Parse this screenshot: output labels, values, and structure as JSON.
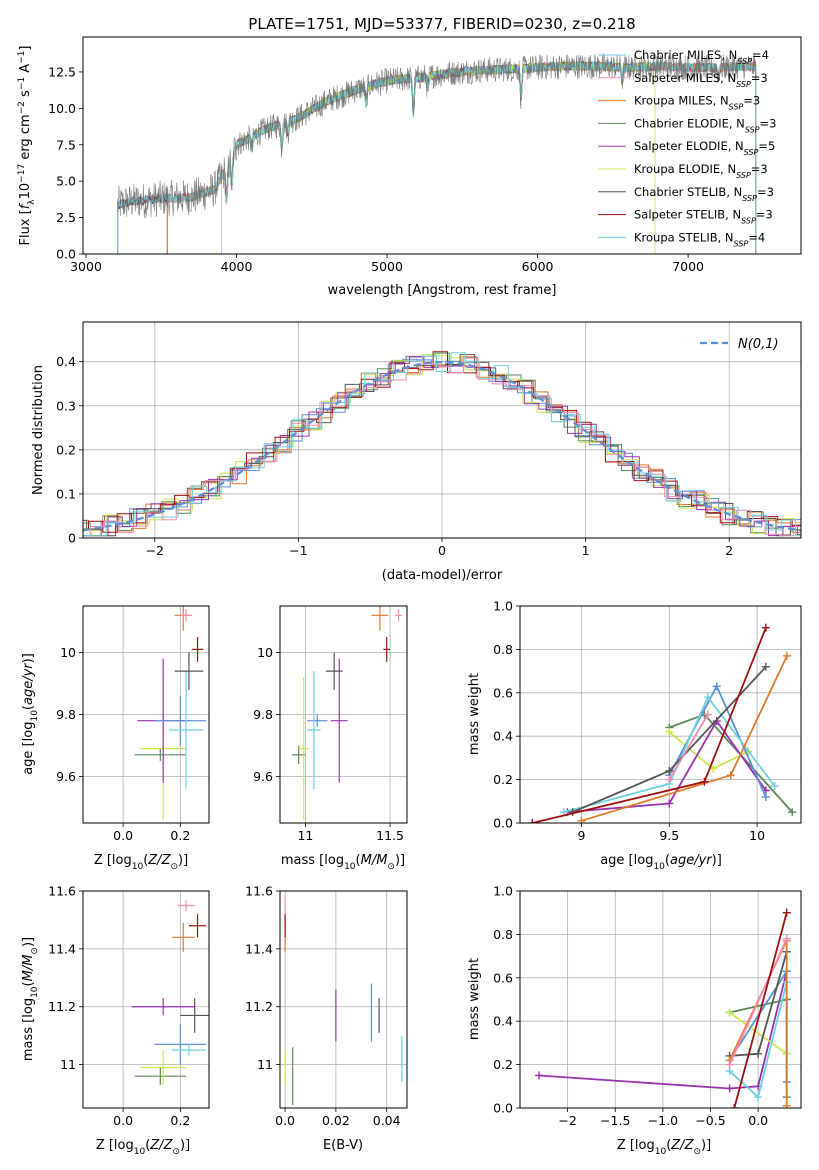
{
  "figure": {
    "title": "PLATE=1751, MJD=53377, FIBERID=0230, z=0.218"
  },
  "colors": {
    "chabrier_miles": "#7dc7e8",
    "salpeter_miles": "#f08cb0",
    "kroupa_miles": "#e07a2a",
    "chabrier_elodie": "#5a8a5a",
    "salpeter_elodie": "#9a30b0",
    "kroupa_elodie": "#c8e850",
    "chabrier_stelib": "#555555",
    "salpeter_stelib": "#a01010",
    "kroupa_stelib": "#6fd0e0",
    "normal_curve": "#5b8fd6",
    "grid": "#b0b0b0"
  },
  "chart_data": [
    {
      "id": "spectrum",
      "type": "line",
      "xlabel": "wavelength [Angstrom, rest frame]",
      "ylabel": "Flux [f_λ 10^-17 erg cm^-2 s^-1 A^-1]",
      "xlim": [
        2980,
        7750
      ],
      "ylim": [
        0,
        14.9
      ],
      "xticks": [
        3000,
        4000,
        5000,
        6000,
        7000
      ],
      "yticks": [
        0.0,
        2.5,
        5.0,
        7.5,
        10.0,
        12.5
      ],
      "grid": false,
      "legend_position": "right",
      "series": [
        {
          "name": "Chabrier MILES, N_SSP=4",
          "label_main": "Chabrier MILES, N",
          "label_sub": "SSP",
          "label_tail": "=4",
          "color_key": "chabrier_miles",
          "start": 3540,
          "end": 7450
        },
        {
          "name": "Salpeter MILES, N_SSP=3",
          "label_main": "Salpeter MILES, N",
          "label_sub": "SSP",
          "label_tail": "=3",
          "color_key": "salpeter_miles",
          "start": 3540,
          "end": 7450
        },
        {
          "name": "Kroupa MILES, N_SSP=3",
          "label_main": "Kroupa MILES, N",
          "label_sub": "SSP",
          "label_tail": "=3",
          "color_key": "kroupa_miles",
          "start": 3540,
          "end": 7450
        },
        {
          "name": "Chabrier ELODIE, N_SSP=3",
          "label_main": "Chabrier ELODIE, N",
          "label_sub": "SSP",
          "label_tail": "=3",
          "color_key": "chabrier_elodie",
          "start": 3900,
          "end": 6780
        },
        {
          "name": "Salpeter ELODIE, N_SSP=5",
          "label_main": "Salpeter ELODIE, N",
          "label_sub": "SSP",
          "label_tail": "=5",
          "color_key": "salpeter_elodie",
          "start": 3900,
          "end": 6780
        },
        {
          "name": "Kroupa ELODIE, N_SSP=3",
          "label_main": "Kroupa ELODIE, N",
          "label_sub": "SSP",
          "label_tail": "=3",
          "color_key": "kroupa_elodie",
          "start": 3900,
          "end": 6780
        },
        {
          "name": "Chabrier STELIB, N_SSP=3",
          "label_main": "Chabrier STELIB, N",
          "label_sub": "SSP",
          "label_tail": "=3",
          "color_key": "chabrier_stelib",
          "start": 3210,
          "end": 7450
        },
        {
          "name": "Salpeter STELIB, N_SSP=3",
          "label_main": "Salpeter STELIB, N",
          "label_sub": "SSP",
          "label_tail": "=3",
          "color_key": "salpeter_stelib",
          "start": 3210,
          "end": 7450
        },
        {
          "name": "Kroupa STELIB, N_SSP=4",
          "label_main": "Kroupa STELIB, N",
          "label_sub": "SSP",
          "label_tail": "=4",
          "color_key": "kroupa_stelib",
          "start": 3210,
          "end": 7450
        }
      ],
      "continuum_knots": [
        [
          3210,
          3.4
        ],
        [
          3300,
          3.6
        ],
        [
          3500,
          3.8
        ],
        [
          3700,
          3.9
        ],
        [
          3850,
          4.4
        ],
        [
          3950,
          6.2
        ],
        [
          4000,
          7.5
        ],
        [
          4200,
          8.6
        ],
        [
          4400,
          9.3
        ],
        [
          4600,
          10.5
        ],
        [
          4800,
          11.3
        ],
        [
          5000,
          11.9
        ],
        [
          5200,
          12.1
        ],
        [
          5400,
          12.4
        ],
        [
          5600,
          12.6
        ],
        [
          5800,
          12.7
        ],
        [
          6000,
          12.8
        ],
        [
          6200,
          12.9
        ],
        [
          6400,
          12.9
        ],
        [
          6600,
          12.8
        ],
        [
          6800,
          12.9
        ],
        [
          7000,
          12.8
        ],
        [
          7200,
          12.8
        ],
        [
          7450,
          12.9
        ]
      ],
      "absorption_features": [
        [
          3934,
          2.2
        ],
        [
          3969,
          2.0
        ],
        [
          4102,
          0.9
        ],
        [
          4300,
          1.6
        ],
        [
          4340,
          0.8
        ],
        [
          4861,
          1.2
        ],
        [
          5175,
          2.4
        ],
        [
          5270,
          0.8
        ],
        [
          5890,
          2.0
        ],
        [
          6563,
          0.9
        ],
        [
          7200,
          0.6
        ]
      ]
    },
    {
      "id": "residuals",
      "type": "line",
      "xlabel": "(data-model)/error",
      "ylabel": "Normed distribution",
      "xlim": [
        -2.5,
        2.5
      ],
      "ylim": [
        0,
        0.49
      ],
      "xticks": [
        -2,
        -1,
        0,
        1,
        2
      ],
      "yticks": [
        0.0,
        0.1,
        0.2,
        0.3,
        0.4
      ],
      "grid": true,
      "legend_position": "top-right",
      "legend_label": "N(0,1)",
      "bin_width": 0.1
    },
    {
      "id": "age_vs_Z",
      "type": "scatter",
      "xlabel": "Z [log10(Z/Z_sun)]",
      "ylabel": "age [log10(age/yr)]",
      "xlim": [
        -0.14,
        0.3
      ],
      "ylim": [
        9.45,
        10.15
      ],
      "xticks": [
        0.0,
        0.2
      ],
      "yticks": [
        9.6,
        9.8,
        10.0
      ],
      "grid": true,
      "points": [
        {
          "color_key": "chabrier_elodie",
          "x": 0.13,
          "y": 9.67,
          "xerr": 0.09,
          "yerr": 0.02
        },
        {
          "color_key": "kroupa_elodie",
          "x": 0.14,
          "y": 9.69,
          "xerr": 0.08,
          "yerr": 0.23
        },
        {
          "color_key": "salpeter_elodie",
          "x": 0.14,
          "y": 9.78,
          "xerr": 0.09,
          "yerr": 0.2
        },
        {
          "color_key": "normal_curve",
          "x": 0.2,
          "y": 9.78,
          "xerr": 0.09,
          "yerr": 0.08
        },
        {
          "color_key": "kroupa_stelib",
          "x": 0.22,
          "y": 9.75,
          "xerr": 0.06,
          "yerr": 0.19
        },
        {
          "color_key": "chabrier_stelib",
          "x": 0.23,
          "y": 9.94,
          "xerr": 0.05,
          "yerr": 0.06
        },
        {
          "color_key": "kroupa_miles",
          "x": 0.21,
          "y": 10.12,
          "xerr": 0.03,
          "yerr": 0.05
        },
        {
          "color_key": "salpeter_miles",
          "x": 0.22,
          "y": 10.12,
          "xerr": 0.02,
          "yerr": 0.02
        },
        {
          "color_key": "salpeter_stelib",
          "x": 0.26,
          "y": 10.01,
          "xerr": 0.02,
          "yerr": 0.04
        }
      ]
    },
    {
      "id": "age_vs_mass",
      "type": "scatter",
      "xlabel": "mass [log10(M/M_sun)]",
      "ylabel": "",
      "xlim": [
        10.85,
        11.6
      ],
      "ylim": [
        9.45,
        10.15
      ],
      "xticks": [
        11.0,
        11.5
      ],
      "yticks": [
        9.6,
        9.8,
        10.0
      ],
      "grid": true,
      "points": [
        {
          "color_key": "chabrier_elodie",
          "x": 10.96,
          "y": 9.67,
          "xerr": 0.04,
          "yerr": 0.03
        },
        {
          "color_key": "kroupa_elodie",
          "x": 10.99,
          "y": 9.69,
          "xerr": 0.03,
          "yerr": 0.23
        },
        {
          "color_key": "salpeter_elodie",
          "x": 11.2,
          "y": 9.78,
          "xerr": 0.05,
          "yerr": 0.2
        },
        {
          "color_key": "normal_curve",
          "x": 11.07,
          "y": 9.78,
          "xerr": 0.06,
          "yerr": 0.02
        },
        {
          "color_key": "kroupa_stelib",
          "x": 11.05,
          "y": 9.75,
          "xerr": 0.04,
          "yerr": 0.19
        },
        {
          "color_key": "chabrier_stelib",
          "x": 11.17,
          "y": 9.94,
          "xerr": 0.05,
          "yerr": 0.06
        },
        {
          "color_key": "kroupa_miles",
          "x": 11.44,
          "y": 10.12,
          "xerr": 0.05,
          "yerr": 0.05
        },
        {
          "color_key": "salpeter_miles",
          "x": 11.55,
          "y": 10.12,
          "xerr": 0.02,
          "yerr": 0.02
        },
        {
          "color_key": "salpeter_stelib",
          "x": 11.48,
          "y": 10.01,
          "xerr": 0.02,
          "yerr": 0.04
        }
      ]
    },
    {
      "id": "mass_weight_vs_age",
      "type": "line",
      "xlabel": "age [log10(age/yr)]",
      "ylabel": "mass weight",
      "xlim": [
        8.65,
        10.25
      ],
      "ylim": [
        0,
        1
      ],
      "xticks": [
        9.0,
        9.5,
        10.0
      ],
      "yticks": [
        0.0,
        0.2,
        0.4,
        0.6,
        0.8,
        1.0
      ],
      "grid": true,
      "series": [
        {
          "color_key": "chabrier_elodie",
          "points": [
            [
              9.5,
              0.44
            ],
            [
              9.7,
              0.5
            ],
            [
              10.2,
              0.05
            ]
          ]
        },
        {
          "color_key": "kroupa_elodie",
          "points": [
            [
              9.5,
              0.42
            ],
            [
              9.75,
              0.25
            ],
            [
              9.95,
              0.33
            ]
          ]
        },
        {
          "color_key": "salpeter_elodie",
          "points": [
            [
              8.92,
              0.05
            ],
            [
              9.5,
              0.09
            ],
            [
              9.77,
              0.47
            ],
            [
              10.05,
              0.15
            ]
          ]
        },
        {
          "color_key": "normal_curve",
          "points": [
            [
              9.5,
              0.22
            ],
            [
              9.77,
              0.63
            ],
            [
              10.05,
              0.12
            ]
          ]
        },
        {
          "color_key": "kroupa_stelib",
          "points": [
            [
              8.9,
              0.05
            ],
            [
              9.5,
              0.18
            ],
            [
              9.72,
              0.58
            ],
            [
              10.1,
              0.17
            ]
          ]
        },
        {
          "color_key": "chabrier_stelib",
          "points": [
            [
              8.95,
              0.05
            ],
            [
              9.5,
              0.24
            ],
            [
              10.05,
              0.72
            ]
          ]
        },
        {
          "color_key": "kroupa_miles",
          "points": [
            [
              9.0,
              0.01
            ],
            [
              9.85,
              0.22
            ],
            [
              10.17,
              0.77
            ]
          ]
        },
        {
          "color_key": "salpeter_miles",
          "points": [
            [
              9.5,
              0.2
            ],
            [
              9.72,
              0.5
            ]
          ]
        },
        {
          "color_key": "salpeter_stelib",
          "points": [
            [
              8.72,
              0.0
            ],
            [
              9.7,
              0.19
            ],
            [
              10.05,
              0.9
            ]
          ]
        }
      ]
    },
    {
      "id": "mass_vs_Z",
      "type": "scatter",
      "xlabel": "Z [log10(Z/Z_sun)]",
      "ylabel": "mass [log10(M/M_sun)]",
      "xlim": [
        -0.14,
        0.3
      ],
      "ylim": [
        10.85,
        11.6
      ],
      "xticks": [
        0.0,
        0.2
      ],
      "yticks": [
        11.0,
        11.2,
        11.4,
        11.6
      ],
      "grid": true,
      "points": [
        {
          "color_key": "chabrier_elodie",
          "x": 0.13,
          "y": 10.96,
          "xerr": 0.09,
          "yerr": 0.03
        },
        {
          "color_key": "kroupa_elodie",
          "x": 0.14,
          "y": 10.99,
          "xerr": 0.08,
          "yerr": 0.06
        },
        {
          "color_key": "salpeter_elodie",
          "x": 0.14,
          "y": 11.2,
          "xerr": 0.11,
          "yerr": 0.03
        },
        {
          "color_key": "normal_curve",
          "x": 0.2,
          "y": 11.07,
          "xerr": 0.09,
          "yerr": 0.07
        },
        {
          "color_key": "kroupa_stelib",
          "x": 0.23,
          "y": 11.05,
          "xerr": 0.06,
          "yerr": 0.02
        },
        {
          "color_key": "chabrier_stelib",
          "x": 0.25,
          "y": 11.17,
          "xerr": 0.05,
          "yerr": 0.06
        },
        {
          "color_key": "kroupa_miles",
          "x": 0.21,
          "y": 11.44,
          "xerr": 0.04,
          "yerr": 0.05
        },
        {
          "color_key": "salpeter_miles",
          "x": 0.22,
          "y": 11.55,
          "xerr": 0.03,
          "yerr": 0.02
        },
        {
          "color_key": "salpeter_stelib",
          "x": 0.26,
          "y": 11.48,
          "xerr": 0.03,
          "yerr": 0.04
        }
      ]
    },
    {
      "id": "mass_vs_EBV",
      "type": "scatter",
      "xlabel": "E(B-V)",
      "ylabel": "",
      "xlim": [
        -0.002,
        0.048
      ],
      "ylim": [
        10.85,
        11.6
      ],
      "xticks": [
        0.0,
        0.02,
        0.04
      ],
      "yticks": [
        11.0,
        11.2,
        11.4,
        11.6
      ],
      "grid": true,
      "points": [
        {
          "color_key": "salpeter_miles",
          "x": 0.0,
          "y": 11.53,
          "xerr": 0,
          "yerr": 0.05
        },
        {
          "color_key": "kroupa_miles",
          "x": 0.0,
          "y": 11.44,
          "xerr": 0,
          "yerr": 0.05
        },
        {
          "color_key": "salpeter_stelib",
          "x": 0.0,
          "y": 11.48,
          "xerr": 0,
          "yerr": 0.04
        },
        {
          "color_key": "kroupa_elodie",
          "x": 0.0,
          "y": 10.99,
          "xerr": 0,
          "yerr": 0.06
        },
        {
          "color_key": "chabrier_elodie",
          "x": 0.003,
          "y": 10.96,
          "xerr": 0,
          "yerr": 0.1
        },
        {
          "color_key": "salpeter_elodie",
          "x": 0.02,
          "y": 11.17,
          "xerr": 0,
          "yerr": 0.09
        },
        {
          "color_key": "normal_curve",
          "x": 0.034,
          "y": 11.18,
          "xerr": 0,
          "yerr": 0.1
        },
        {
          "color_key": "chabrier_stelib",
          "x": 0.037,
          "y": 11.17,
          "xerr": 0,
          "yerr": 0.06
        },
        {
          "color_key": "kroupa_stelib",
          "x": 0.046,
          "y": 11.02,
          "xerr": 0,
          "yerr": 0.08
        }
      ]
    },
    {
      "id": "mass_weight_vs_Z",
      "type": "line",
      "xlabel": "Z [log10(Z/Z_sun)]",
      "ylabel": "mass weight",
      "xlim": [
        -2.5,
        0.45
      ],
      "ylim": [
        0,
        1
      ],
      "xticks": [
        -2.0,
        -1.5,
        -1.0,
        -0.5,
        0.0
      ],
      "yticks": [
        0.0,
        0.2,
        0.4,
        0.6,
        0.8,
        1.0
      ],
      "grid": true,
      "series": [
        {
          "color_key": "salpeter_elodie",
          "points": [
            [
              -2.3,
              0.15
            ],
            [
              -0.3,
              0.09
            ],
            [
              0.0,
              0.1
            ],
            [
              0.3,
              0.63
            ]
          ]
        },
        {
          "color_key": "chabrier_elodie",
          "points": [
            [
              -0.3,
              0.44
            ],
            [
              0.3,
              0.5
            ],
            [
              0.3,
              0.05
            ]
          ]
        },
        {
          "color_key": "kroupa_elodie",
          "points": [
            [
              -0.3,
              0.44
            ],
            [
              0.3,
              0.25
            ]
          ]
        },
        {
          "color_key": "normal_curve",
          "points": [
            [
              -0.3,
              0.22
            ],
            [
              0.3,
              0.63
            ],
            [
              0.3,
              0.12
            ]
          ]
        },
        {
          "color_key": "kroupa_stelib",
          "points": [
            [
              -0.3,
              0.17
            ],
            [
              0.0,
              0.05
            ],
            [
              0.3,
              0.58
            ]
          ]
        },
        {
          "color_key": "chabrier_stelib",
          "points": [
            [
              -0.3,
              0.24
            ],
            [
              0.0,
              0.25
            ],
            [
              0.3,
              0.72
            ]
          ]
        },
        {
          "color_key": "kroupa_miles",
          "points": [
            [
              -0.3,
              0.22
            ],
            [
              0.3,
              0.77
            ],
            [
              0.3,
              0.01
            ]
          ]
        },
        {
          "color_key": "salpeter_miles",
          "points": [
            [
              -0.3,
              0.2
            ],
            [
              0.3,
              0.78
            ]
          ]
        },
        {
          "color_key": "salpeter_stelib",
          "points": [
            [
              -0.25,
              0.0
            ],
            [
              0.3,
              0.9
            ]
          ]
        }
      ]
    }
  ]
}
